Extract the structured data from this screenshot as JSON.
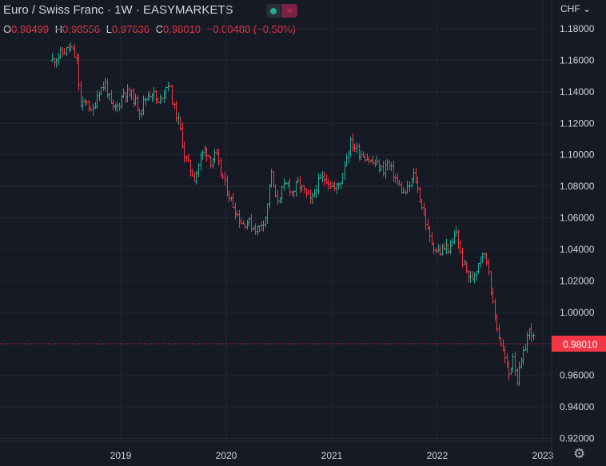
{
  "header": {
    "title": "Euro / Swiss Franc · 1W · EASYMARKETS",
    "currency": "CHF",
    "currency_icon": "chevron-down-icon",
    "ohlc": {
      "o_label": "O",
      "o": "0.98499",
      "h_label": "H",
      "h": "0.98556",
      "l_label": "L",
      "l": "0.97636",
      "c_label": "C",
      "c": "0.98010",
      "change": "−0.00488 (−0.50%)"
    }
  },
  "price_label": "0.98010",
  "colors": {
    "up": "#22ab94",
    "down": "#f23645",
    "background": "#161a25",
    "grid": "#232733",
    "text": "#d1d4dc"
  },
  "chart_data": {
    "type": "ohlc",
    "symbol": "EURCHF",
    "interval": "1W",
    "y_ticks": [
      "1.18000",
      "1.16000",
      "1.14000",
      "1.12000",
      "1.10000",
      "1.08000",
      "1.06000",
      "1.04000",
      "1.02000",
      "1.00000",
      "0.96000",
      "0.94000",
      "0.92000"
    ],
    "x_ticks": [
      "2019",
      "2020",
      "2021",
      "2022",
      "2023"
    ],
    "ylim": [
      0.92,
      1.185
    ],
    "xlim": [
      2018.0,
      2023.05
    ],
    "last_price": 0.9801,
    "grid": true,
    "series": [
      {
        "t": 2018.35,
        "v": 1.16
      },
      {
        "t": 2018.45,
        "v": 1.165
      },
      {
        "t": 2018.52,
        "v": 1.168
      },
      {
        "t": 2018.58,
        "v": 1.16
      },
      {
        "t": 2018.62,
        "v": 1.13
      },
      {
        "t": 2018.68,
        "v": 1.135
      },
      {
        "t": 2018.72,
        "v": 1.125
      },
      {
        "t": 2018.78,
        "v": 1.14
      },
      {
        "t": 2018.85,
        "v": 1.145
      },
      {
        "t": 2018.92,
        "v": 1.128
      },
      {
        "t": 2018.98,
        "v": 1.132
      },
      {
        "t": 2019.02,
        "v": 1.14
      },
      {
        "t": 2019.1,
        "v": 1.138
      },
      {
        "t": 2019.18,
        "v": 1.128
      },
      {
        "t": 2019.25,
        "v": 1.138
      },
      {
        "t": 2019.3,
        "v": 1.14
      },
      {
        "t": 2019.35,
        "v": 1.132
      },
      {
        "t": 2019.4,
        "v": 1.14
      },
      {
        "t": 2019.45,
        "v": 1.146
      },
      {
        "t": 2019.5,
        "v": 1.13
      },
      {
        "t": 2019.55,
        "v": 1.12
      },
      {
        "t": 2019.6,
        "v": 1.1
      },
      {
        "t": 2019.65,
        "v": 1.092
      },
      {
        "t": 2019.7,
        "v": 1.085
      },
      {
        "t": 2019.75,
        "v": 1.098
      },
      {
        "t": 2019.8,
        "v": 1.104
      },
      {
        "t": 2019.85,
        "v": 1.096
      },
      {
        "t": 2019.9,
        "v": 1.1
      },
      {
        "t": 2019.95,
        "v": 1.088
      },
      {
        "t": 2020.0,
        "v": 1.078
      },
      {
        "t": 2020.05,
        "v": 1.07
      },
      {
        "t": 2020.1,
        "v": 1.062
      },
      {
        "t": 2020.15,
        "v": 1.056
      },
      {
        "t": 2020.2,
        "v": 1.058
      },
      {
        "t": 2020.25,
        "v": 1.054
      },
      {
        "t": 2020.3,
        "v": 1.053
      },
      {
        "t": 2020.38,
        "v": 1.062
      },
      {
        "t": 2020.42,
        "v": 1.09
      },
      {
        "t": 2020.47,
        "v": 1.07
      },
      {
        "t": 2020.52,
        "v": 1.077
      },
      {
        "t": 2020.58,
        "v": 1.082
      },
      {
        "t": 2020.62,
        "v": 1.076
      },
      {
        "t": 2020.68,
        "v": 1.082
      },
      {
        "t": 2020.72,
        "v": 1.078
      },
      {
        "t": 2020.8,
        "v": 1.07
      },
      {
        "t": 2020.85,
        "v": 1.08
      },
      {
        "t": 2020.9,
        "v": 1.085
      },
      {
        "t": 2020.95,
        "v": 1.085
      },
      {
        "t": 2021.02,
        "v": 1.078
      },
      {
        "t": 2021.08,
        "v": 1.083
      },
      {
        "t": 2021.12,
        "v": 1.095
      },
      {
        "t": 2021.18,
        "v": 1.108
      },
      {
        "t": 2021.25,
        "v": 1.102
      },
      {
        "t": 2021.3,
        "v": 1.1
      },
      {
        "t": 2021.38,
        "v": 1.095
      },
      {
        "t": 2021.42,
        "v": 1.094
      },
      {
        "t": 2021.48,
        "v": 1.09
      },
      {
        "t": 2021.52,
        "v": 1.095
      },
      {
        "t": 2021.58,
        "v": 1.088
      },
      {
        "t": 2021.62,
        "v": 1.082
      },
      {
        "t": 2021.68,
        "v": 1.075
      },
      {
        "t": 2021.72,
        "v": 1.078
      },
      {
        "t": 2021.78,
        "v": 1.088
      },
      {
        "t": 2021.82,
        "v": 1.075
      },
      {
        "t": 2021.88,
        "v": 1.06
      },
      {
        "t": 2021.92,
        "v": 1.048
      },
      {
        "t": 2021.98,
        "v": 1.04
      },
      {
        "t": 2022.02,
        "v": 1.038
      },
      {
        "t": 2022.08,
        "v": 1.042
      },
      {
        "t": 2022.12,
        "v": 1.04
      },
      {
        "t": 2022.18,
        "v": 1.052
      },
      {
        "t": 2022.22,
        "v": 1.035
      },
      {
        "t": 2022.28,
        "v": 1.025
      },
      {
        "t": 2022.32,
        "v": 1.02
      },
      {
        "t": 2022.38,
        "v": 1.03
      },
      {
        "t": 2022.42,
        "v": 1.04
      },
      {
        "t": 2022.48,
        "v": 1.03
      },
      {
        "t": 2022.52,
        "v": 1.005
      },
      {
        "t": 2022.58,
        "v": 0.985
      },
      {
        "t": 2022.62,
        "v": 0.975
      },
      {
        "t": 2022.68,
        "v": 0.96
      },
      {
        "t": 2022.72,
        "v": 0.975
      },
      {
        "t": 2022.75,
        "v": 0.955
      },
      {
        "t": 2022.78,
        "v": 0.965
      },
      {
        "t": 2022.82,
        "v": 0.975
      },
      {
        "t": 2022.85,
        "v": 0.985
      },
      {
        "t": 2022.88,
        "v": 0.99
      },
      {
        "t": 2022.92,
        "v": 0.98
      }
    ]
  }
}
